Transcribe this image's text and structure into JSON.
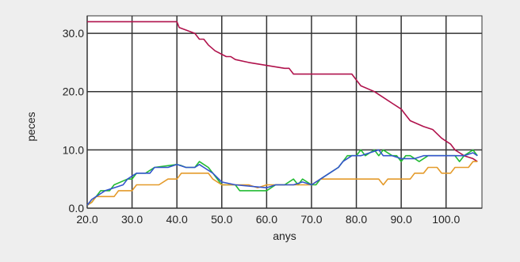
{
  "chart_data": {
    "type": "line",
    "title": "",
    "xlabel": "anys",
    "ylabel": "peces",
    "xlim": [
      20,
      108
    ],
    "ylim": [
      0,
      33
    ],
    "grid": true,
    "legend": "none",
    "x_ticks": [
      "20.0",
      "30.0",
      "40.0",
      "50.0",
      "60.0",
      "70.0",
      "80.0",
      "90.0",
      "100.0"
    ],
    "y_ticks": [
      "0.0",
      "10.0",
      "20.0",
      "30.0"
    ],
    "x_tick_values": [
      20,
      30,
      40,
      50,
      60,
      70,
      80,
      90,
      100
    ],
    "y_tick_values": [
      0,
      10,
      20,
      30
    ],
    "series": [
      {
        "color": "#b0124c",
        "points": [
          [
            20,
            32
          ],
          [
            40,
            32
          ],
          [
            40.5,
            31
          ],
          [
            44,
            30
          ],
          [
            45,
            29
          ],
          [
            46,
            29
          ],
          [
            47,
            28
          ],
          [
            48.5,
            27
          ],
          [
            51,
            26
          ],
          [
            52,
            26
          ],
          [
            53,
            25.5
          ],
          [
            56,
            25
          ],
          [
            64,
            24
          ],
          [
            65,
            24
          ],
          [
            66,
            23
          ],
          [
            79,
            23
          ],
          [
            80,
            22
          ],
          [
            81,
            21
          ],
          [
            84,
            20
          ],
          [
            86,
            19
          ],
          [
            88,
            18
          ],
          [
            90,
            17
          ],
          [
            91,
            16
          ],
          [
            92,
            15
          ],
          [
            95,
            14
          ],
          [
            97,
            13.5
          ],
          [
            99,
            12
          ],
          [
            100,
            11.5
          ],
          [
            101,
            11
          ],
          [
            102,
            10
          ],
          [
            103,
            9.5
          ],
          [
            104,
            9
          ],
          [
            106,
            8.5
          ],
          [
            107,
            8
          ]
        ]
      },
      {
        "color": "#22bb33",
        "points": [
          [
            20,
            0.5
          ],
          [
            21,
            1
          ],
          [
            22,
            2
          ],
          [
            23,
            3
          ],
          [
            25,
            3
          ],
          [
            26,
            4
          ],
          [
            29,
            5
          ],
          [
            30,
            5
          ],
          [
            31,
            6
          ],
          [
            33,
            6
          ],
          [
            35,
            7
          ],
          [
            40,
            7.5
          ],
          [
            41,
            7.3
          ],
          [
            42,
            7
          ],
          [
            44,
            7
          ],
          [
            45,
            8
          ],
          [
            47,
            7
          ],
          [
            48,
            6
          ],
          [
            49,
            5
          ],
          [
            50,
            4
          ],
          [
            53,
            4
          ],
          [
            54,
            3
          ],
          [
            60,
            3
          ],
          [
            62,
            4
          ],
          [
            63,
            4
          ],
          [
            64,
            4
          ],
          [
            66,
            5
          ],
          [
            67,
            4
          ],
          [
            68,
            5
          ],
          [
            70,
            4
          ],
          [
            71,
            4
          ],
          [
            72,
            5
          ],
          [
            74,
            6
          ],
          [
            76,
            7
          ],
          [
            77,
            8
          ],
          [
            78,
            9
          ],
          [
            80,
            9
          ],
          [
            81,
            10
          ],
          [
            82,
            9
          ],
          [
            84,
            10
          ],
          [
            85,
            9
          ],
          [
            86,
            10
          ],
          [
            88,
            9
          ],
          [
            89,
            9
          ],
          [
            90,
            8
          ],
          [
            91,
            9
          ],
          [
            92,
            9
          ],
          [
            94,
            8
          ],
          [
            96,
            9
          ],
          [
            102,
            9
          ],
          [
            103,
            8
          ],
          [
            104,
            9
          ],
          [
            106,
            10
          ],
          [
            107,
            9
          ]
        ]
      },
      {
        "color": "#e49a2a",
        "points": [
          [
            20,
            0.5
          ],
          [
            21,
            1
          ],
          [
            22,
            2
          ],
          [
            26,
            2
          ],
          [
            27,
            3
          ],
          [
            30,
            3
          ],
          [
            31,
            4
          ],
          [
            36,
            4
          ],
          [
            38,
            5
          ],
          [
            40,
            5
          ],
          [
            41,
            6
          ],
          [
            47,
            6
          ],
          [
            48,
            5
          ],
          [
            50,
            4
          ],
          [
            56,
            4
          ],
          [
            58,
            3.5
          ],
          [
            60,
            4
          ],
          [
            70,
            4
          ],
          [
            71,
            4.5
          ],
          [
            72,
            5
          ],
          [
            85,
            5
          ],
          [
            86,
            4
          ],
          [
            87,
            5
          ],
          [
            92,
            5
          ],
          [
            93,
            6
          ],
          [
            95,
            6
          ],
          [
            96,
            7
          ],
          [
            98,
            7
          ],
          [
            99,
            6
          ],
          [
            101,
            6
          ],
          [
            102,
            7
          ],
          [
            105,
            7
          ],
          [
            106,
            8
          ],
          [
            107,
            8
          ]
        ]
      },
      {
        "color": "#3355cc",
        "points": [
          [
            20,
            0.5
          ],
          [
            21,
            1.5
          ],
          [
            22,
            2
          ],
          [
            24,
            3
          ],
          [
            26,
            3.5
          ],
          [
            28,
            4
          ],
          [
            29,
            5
          ],
          [
            31,
            6
          ],
          [
            34,
            6
          ],
          [
            35,
            7
          ],
          [
            38,
            7
          ],
          [
            40,
            7.5
          ],
          [
            42,
            7
          ],
          [
            44,
            7
          ],
          [
            45,
            7.5
          ],
          [
            46,
            7
          ],
          [
            48,
            6
          ],
          [
            50,
            4.5
          ],
          [
            53,
            4
          ],
          [
            60,
            3.5
          ],
          [
            62,
            4
          ],
          [
            66,
            4
          ],
          [
            68,
            4.5
          ],
          [
            70,
            4
          ],
          [
            72,
            5
          ],
          [
            74,
            6
          ],
          [
            76,
            7
          ],
          [
            77,
            8
          ],
          [
            79,
            9
          ],
          [
            81,
            9
          ],
          [
            83,
            9.5
          ],
          [
            85,
            10
          ],
          [
            86,
            9
          ],
          [
            88,
            9
          ],
          [
            90,
            8.5
          ],
          [
            93,
            8.5
          ],
          [
            95,
            9
          ],
          [
            102,
            9
          ],
          [
            104,
            9
          ],
          [
            106,
            9.5
          ],
          [
            107,
            9
          ]
        ]
      }
    ]
  }
}
